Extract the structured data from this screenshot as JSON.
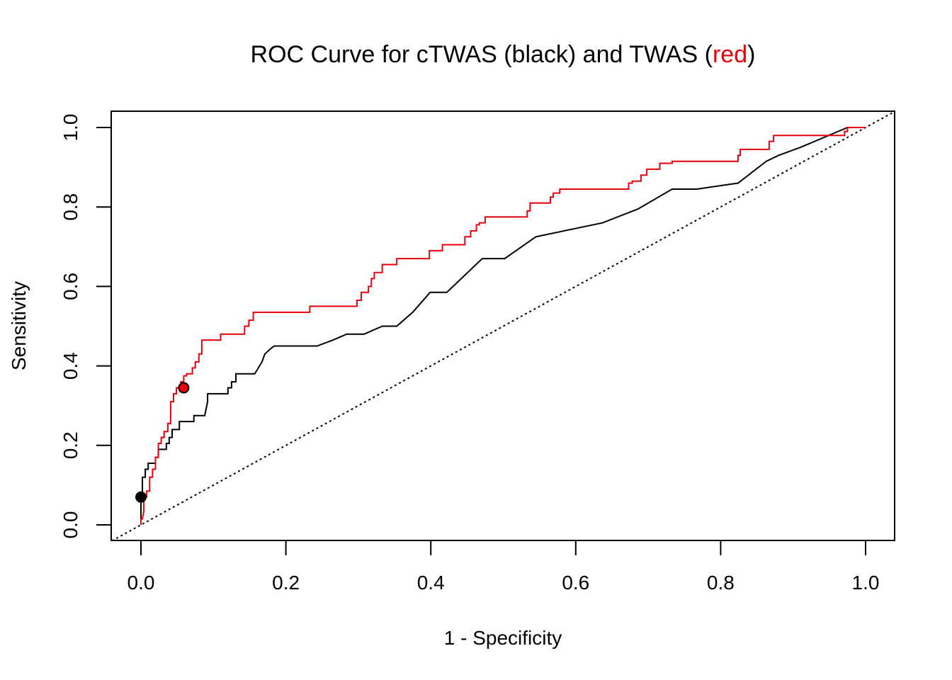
{
  "chart_data": {
    "type": "line",
    "title_parts": [
      "ROC Curve for cTWAS (black) and TWAS (",
      "red",
      ")"
    ],
    "xlabel": "1 - Specificity",
    "ylabel": "Sensitivity",
    "xlim": [
      0,
      1
    ],
    "ylim": [
      0,
      1
    ],
    "xticks": [
      "0.0",
      "0.2",
      "0.4",
      "0.6",
      "0.8",
      "1.0"
    ],
    "yticks": [
      "0.0",
      "0.2",
      "0.4",
      "0.6",
      "0.8",
      "1.0"
    ],
    "grid": false,
    "colors": {
      "ctwas": "#000000",
      "twas": "#e8000b",
      "reference": "#000000"
    },
    "series": [
      {
        "key": "ctwas",
        "x": [
          0,
          0,
          0.002,
          0.002,
          0.006,
          0.006,
          0.01,
          0.01,
          0.02,
          0.02,
          0.024,
          0.024,
          0.035,
          0.035,
          0.039,
          0.039,
          0.043,
          0.043,
          0.053,
          0.053,
          0.057,
          0.057,
          0.073,
          0.073,
          0.088,
          0.092,
          0.092,
          0.12,
          0.12,
          0.125,
          0.125,
          0.131,
          0.131,
          0.139,
          0.139,
          0.157,
          0.167,
          0.171,
          0.18,
          0.184,
          0.243,
          0.265,
          0.284,
          0.308,
          0.333,
          0.353,
          0.375,
          0.399,
          0.422,
          0.471,
          0.502,
          0.545,
          0.637,
          0.686,
          0.733,
          0.767,
          0.824,
          0.863,
          0.88,
          0.91,
          0.975,
          1
        ],
        "y": [
          0,
          0.07,
          0.07,
          0.12,
          0.12,
          0.14,
          0.14,
          0.155,
          0.155,
          0.17,
          0.17,
          0.19,
          0.19,
          0.205,
          0.205,
          0.22,
          0.22,
          0.24,
          0.24,
          0.26,
          0.26,
          0.26,
          0.26,
          0.275,
          0.275,
          0.31,
          0.33,
          0.33,
          0.345,
          0.345,
          0.36,
          0.36,
          0.38,
          0.38,
          0.38,
          0.38,
          0.41,
          0.43,
          0.445,
          0.45,
          0.45,
          0.465,
          0.48,
          0.48,
          0.5,
          0.5,
          0.535,
          0.585,
          0.585,
          0.67,
          0.67,
          0.725,
          0.76,
          0.795,
          0.845,
          0.845,
          0.86,
          0.915,
          0.93,
          0.95,
          1,
          1
        ]
      },
      {
        "key": "twas",
        "x": [
          0,
          0,
          0.002,
          0.004,
          0.004,
          0.008,
          0.008,
          0.012,
          0.012,
          0.016,
          0.016,
          0.02,
          0.02,
          0.024,
          0.024,
          0.028,
          0.028,
          0.032,
          0.032,
          0.037,
          0.037,
          0.041,
          0.041,
          0.045,
          0.045,
          0.049,
          0.049,
          0.055,
          0.055,
          0.059,
          0.059,
          0.063,
          0.063,
          0.071,
          0.071,
          0.075,
          0.075,
          0.08,
          0.08,
          0.084,
          0.084,
          0.086,
          0.086,
          0.11,
          0.11,
          0.143,
          0.143,
          0.149,
          0.149,
          0.155,
          0.155,
          0.233,
          0.233,
          0.298,
          0.298,
          0.304,
          0.304,
          0.314,
          0.314,
          0.318,
          0.318,
          0.322,
          0.322,
          0.324,
          0.324,
          0.333,
          0.333,
          0.353,
          0.353,
          0.398,
          0.398,
          0.416,
          0.416,
          0.447,
          0.447,
          0.455,
          0.455,
          0.463,
          0.463,
          0.467,
          0.467,
          0.475,
          0.475,
          0.478,
          0.478,
          0.533,
          0.533,
          0.537,
          0.537,
          0.565,
          0.565,
          0.569,
          0.569,
          0.578,
          0.578,
          0.673,
          0.673,
          0.678,
          0.678,
          0.69,
          0.69,
          0.698,
          0.698,
          0.716,
          0.716,
          0.733,
          0.733,
          0.824,
          0.824,
          0.827,
          0.827,
          0.867,
          0.867,
          0.873,
          0.873,
          0.971,
          0.971,
          0.975,
          0.975,
          1
        ],
        "y": [
          0,
          0.015,
          0.015,
          0.035,
          0.07,
          0.07,
          0.085,
          0.085,
          0.12,
          0.12,
          0.14,
          0.14,
          0.17,
          0.17,
          0.205,
          0.205,
          0.22,
          0.22,
          0.235,
          0.235,
          0.255,
          0.255,
          0.31,
          0.31,
          0.33,
          0.33,
          0.345,
          0.345,
          0.36,
          0.36,
          0.375,
          0.375,
          0.38,
          0.38,
          0.395,
          0.395,
          0.41,
          0.41,
          0.43,
          0.43,
          0.465,
          0.465,
          0.465,
          0.465,
          0.48,
          0.48,
          0.5,
          0.5,
          0.515,
          0.515,
          0.535,
          0.535,
          0.55,
          0.55,
          0.565,
          0.565,
          0.585,
          0.585,
          0.6,
          0.6,
          0.62,
          0.62,
          0.635,
          0.635,
          0.635,
          0.635,
          0.655,
          0.655,
          0.67,
          0.67,
          0.69,
          0.69,
          0.705,
          0.705,
          0.725,
          0.725,
          0.74,
          0.74,
          0.755,
          0.755,
          0.76,
          0.76,
          0.775,
          0.775,
          0.775,
          0.775,
          0.79,
          0.79,
          0.81,
          0.81,
          0.825,
          0.825,
          0.835,
          0.835,
          0.845,
          0.845,
          0.86,
          0.86,
          0.865,
          0.865,
          0.88,
          0.88,
          0.895,
          0.895,
          0.91,
          0.91,
          0.915,
          0.915,
          0.93,
          0.93,
          0.945,
          0.945,
          0.965,
          0.965,
          0.98,
          0.98,
          0.99,
          0.99,
          1,
          1
        ]
      }
    ],
    "points": [
      {
        "key": "ctwas-point",
        "x": 0,
        "y": 0.07,
        "fill": "#000000"
      },
      {
        "key": "twas-point",
        "x": 0.059,
        "y": 0.345,
        "fill": "#e8000b"
      }
    ],
    "reference_line": {
      "from": [
        -0.04,
        -0.04
      ],
      "to": [
        1.04,
        1.04
      ],
      "style": "dotted"
    }
  }
}
